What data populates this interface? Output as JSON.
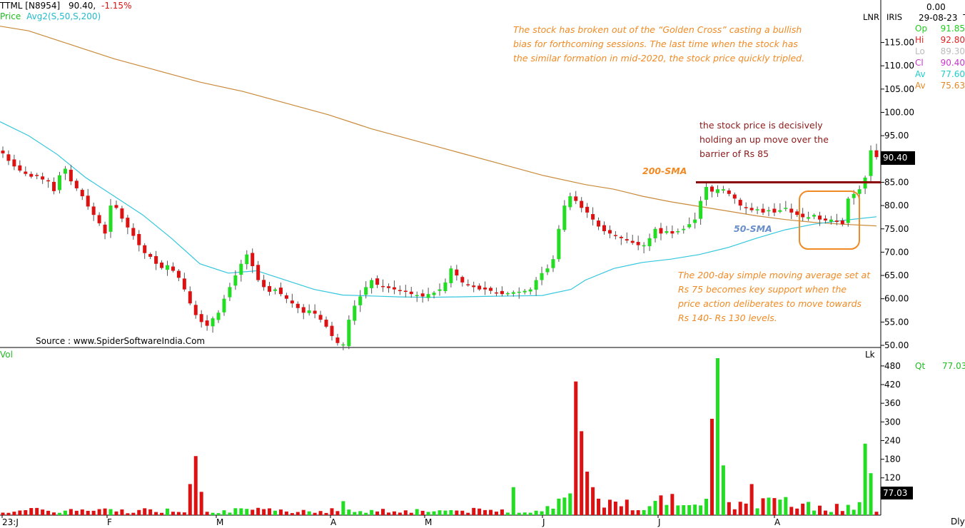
{
  "header": {
    "symbol": "TTML [N8954]",
    "last": "90.40,",
    "change": "-1.15%",
    "overlay_label": "Price",
    "overlay_name": "Avg2(S,50,S,200)",
    "scale_mode": "LNR",
    "indicator": "IRIS",
    "top_value": "0.00",
    "date": "29-08-23",
    "weekday": "Tu"
  },
  "ohlc": [
    {
      "label": "Op",
      "value": "91.85",
      "color": "#22cc22"
    },
    {
      "label": "Hi",
      "value": "92.80",
      "color": "#dd2222"
    },
    {
      "label": "Lo",
      "value": "89.30",
      "color": "#bbbbbb"
    },
    {
      "label": "Cl",
      "value": "90.40",
      "color": "#cc33cc"
    },
    {
      "label": "Av",
      "value": "77.60",
      "color": "#22cccc"
    },
    {
      "label": "Av",
      "value": "75.63",
      "color": "#e08a2a"
    }
  ],
  "price_tag": "90.40",
  "volume_tag": "77.03",
  "volume_panel": {
    "label": "Vol",
    "unit": "Lk",
    "qty_label": "Qt",
    "qty_value": "77.03"
  },
  "period": "Dly",
  "source": "Source : www.SpiderSoftwareIndia.Com",
  "notes": {
    "golden_cross": "The stock has broken out of the “Golden Cross” casting a bullish bias for forthcoming sessions. The last time when the stock has the similar formation in mid-2020, the stock price quickly tripled.",
    "holding": "the stock price is decisively holding an up move over the barrier of Rs 85",
    "sma200_label": "200-SMA",
    "sma50_label": "50-SMA",
    "support": "The 200-day simple moving average set at Rs 75 becomes key support when the price action deliberates to move towards Rs 140- Rs 130 levels."
  },
  "colors": {
    "up": "#22dd22",
    "down": "#dd1111",
    "sma50": "#33c6dd",
    "sma200": "#c98a3a",
    "resistance": "#8b0000",
    "highlight": "#f08a24",
    "note_orange": "#f08a24",
    "note_red": "#8b1a1a",
    "note_blue": "#6a8fc8"
  },
  "chart_data": {
    "type": "candlestick",
    "y_ticks": [
      50,
      55,
      60,
      65,
      70,
      75,
      80,
      85,
      90,
      95,
      100,
      105,
      110,
      115
    ],
    "volume_ticks": [
      120,
      180,
      240,
      300,
      360,
      420,
      480
    ],
    "x_labels": [
      "23:J",
      "F",
      "M",
      "A",
      "M",
      "J",
      "J",
      "A"
    ],
    "resistance_level": 85,
    "last_close": 90.4,
    "closes": [
      91.2,
      89.6,
      88.4,
      87.5,
      86.8,
      86.2,
      86.5,
      85.6,
      85.3,
      83.1,
      86.5,
      87.9,
      85.2,
      83.7,
      82.0,
      79.8,
      78.0,
      76.2,
      74.0,
      80.0,
      79.5,
      77.2,
      75.3,
      73.5,
      71.5,
      69.8,
      69.0,
      67.5,
      66.6,
      67.2,
      66.0,
      64.5,
      62.0,
      59.0,
      56.5,
      55.0,
      54.2,
      55.8,
      57.0,
      60.0,
      62.5,
      65.0,
      67.5,
      69.5,
      67.0,
      64.0,
      62.5,
      61.5,
      62.0,
      61.0,
      60.0,
      59.0,
      58.0,
      57.0,
      57.5,
      56.8,
      55.5,
      54.0,
      52.0,
      50.5,
      50.2,
      55.5,
      58.5,
      60.5,
      62.5,
      64.0,
      63.0,
      62.5,
      62.3,
      62.0,
      61.8,
      61.5,
      61.0,
      60.8,
      60.5,
      61.0,
      61.3,
      62.0,
      63.5,
      66.5,
      65.0,
      63.5,
      63.0,
      62.5,
      62.0,
      62.0,
      61.7,
      61.3,
      61.0,
      61.2,
      61.4,
      61.5,
      61.7,
      62.0,
      64.0,
      65.5,
      66.5,
      68.5,
      75.0,
      80.0,
      82.0,
      81.0,
      79.5,
      78.5,
      77.0,
      75.5,
      74.5,
      74.0,
      73.5,
      73.0,
      72.5,
      72.0,
      71.5,
      71.5,
      73.0,
      75.0,
      74.0,
      74.5,
      74.0,
      74.5,
      75.0,
      76.0,
      77.0,
      81.0,
      84.0,
      83.0,
      83.5,
      83.5,
      82.5,
      81.5,
      80.0,
      79.5,
      79.0,
      79.2,
      78.5,
      79.0,
      78.5,
      79.0,
      79.5,
      78.5,
      78.0,
      77.5,
      77.5,
      78.0,
      77.0,
      76.8,
      77.0,
      76.5,
      76.0,
      81.5,
      82.5,
      83.5,
      86.0,
      91.85,
      90.4
    ],
    "sma50_points": [
      [
        0,
        98
      ],
      [
        40,
        95
      ],
      [
        80,
        91
      ],
      [
        120,
        86
      ],
      [
        160,
        82
      ],
      [
        200,
        78
      ],
      [
        240,
        73
      ],
      [
        280,
        67.5
      ],
      [
        320,
        65.5
      ],
      [
        360,
        66
      ],
      [
        400,
        64
      ],
      [
        440,
        62
      ],
      [
        480,
        60.8
      ],
      [
        520,
        60.6
      ],
      [
        560,
        60.4
      ],
      [
        600,
        60.3
      ],
      [
        640,
        60.4
      ],
      [
        680,
        60.5
      ],
      [
        720,
        60.6
      ],
      [
        760,
        60.7
      ],
      [
        800,
        62
      ],
      [
        820,
        64
      ],
      [
        860,
        66.5
      ],
      [
        900,
        67.8
      ],
      [
        940,
        68.5
      ],
      [
        980,
        69.5
      ],
      [
        1020,
        71
      ],
      [
        1060,
        73
      ],
      [
        1100,
        74.8
      ],
      [
        1140,
        76
      ],
      [
        1180,
        76.8
      ],
      [
        1228,
        77.6
      ]
    ],
    "sma200_points": [
      [
        0,
        118.5
      ],
      [
        40,
        117.5
      ],
      [
        100,
        114.5
      ],
      [
        160,
        111.5
      ],
      [
        220,
        109
      ],
      [
        280,
        106.5
      ],
      [
        340,
        104.5
      ],
      [
        400,
        102
      ],
      [
        460,
        99.5
      ],
      [
        520,
        96.5
      ],
      [
        580,
        94
      ],
      [
        640,
        91.5
      ],
      [
        700,
        89
      ],
      [
        760,
        86.5
      ],
      [
        820,
        84.5
      ],
      [
        860,
        83.5
      ],
      [
        900,
        82
      ],
      [
        940,
        80.8
      ],
      [
        980,
        79.8
      ],
      [
        1020,
        78.8
      ],
      [
        1060,
        77.8
      ],
      [
        1100,
        77
      ],
      [
        1140,
        76.4
      ],
      [
        1180,
        76
      ],
      [
        1228,
        75.63
      ]
    ]
  }
}
